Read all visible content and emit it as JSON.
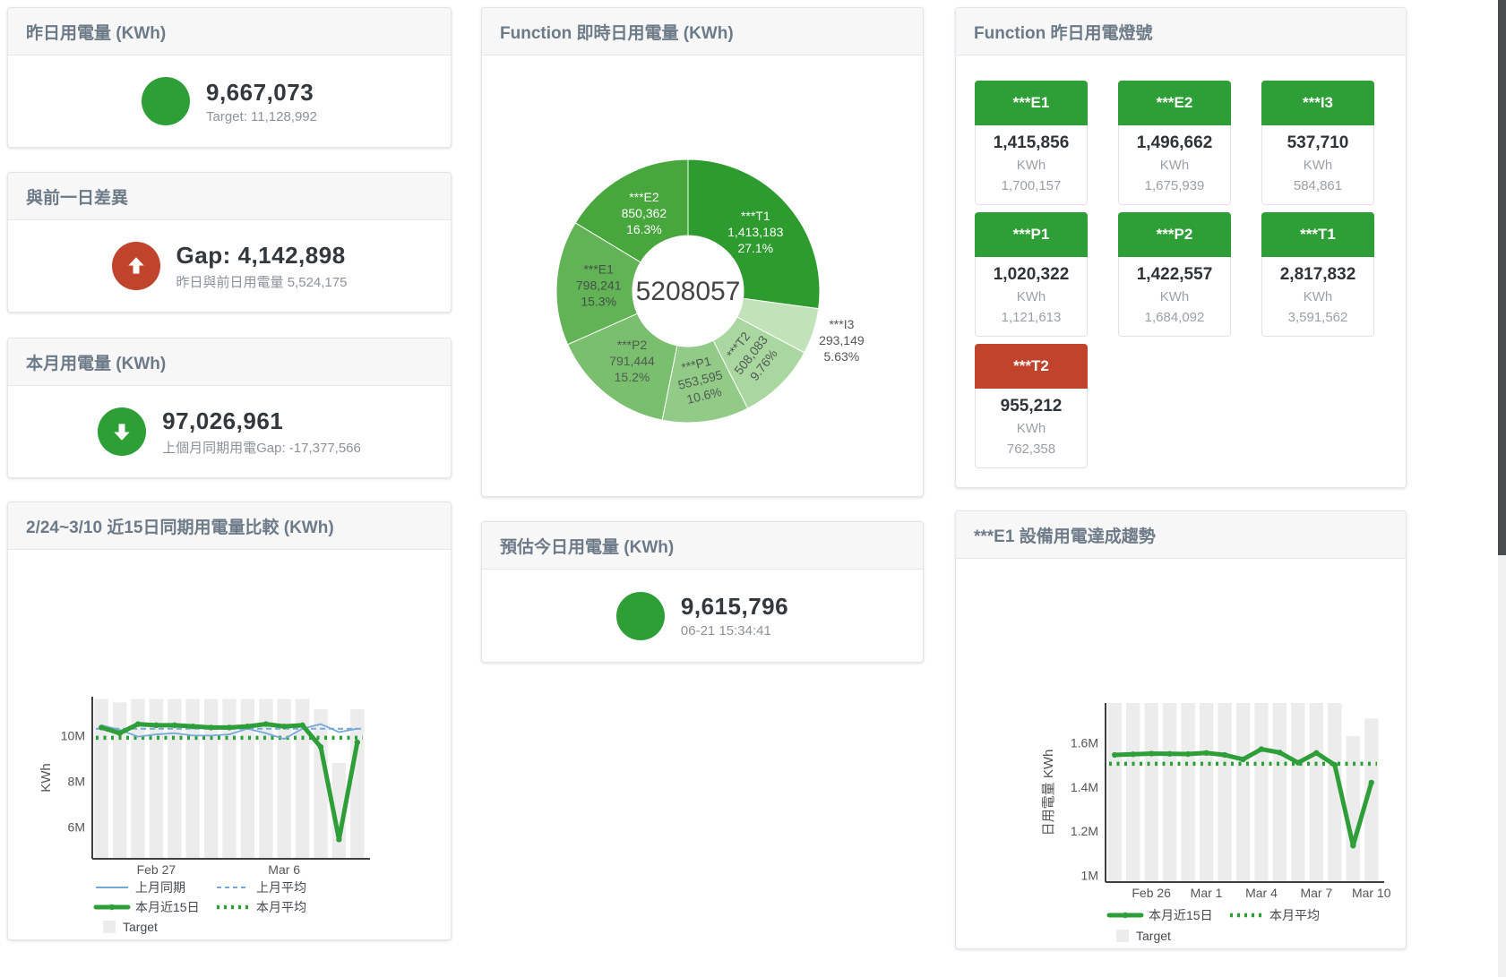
{
  "colors": {
    "green": "#2e9e36",
    "red": "#c0432b",
    "bar_fill": "#ececec",
    "blue_line": "#74a9d8",
    "green_line": "#2e9e38",
    "title_text": "#6d7a88"
  },
  "cards": {
    "yesterday": {
      "title": "昨日用電量 (KWh)",
      "value": "9,667,073",
      "subtitle": "Target: 11,128,992",
      "indicator": "green-circle"
    },
    "day_gap": {
      "title": "與前一日差異",
      "value": "Gap: 4,142,898",
      "subtitle": "昨日與前日用電量 5,524,175",
      "indicator": "red-circle-up-arrow"
    },
    "month": {
      "title": "本月用電量 (KWh)",
      "value": "97,026,961",
      "subtitle": "上個月同期用電Gap: -17,377,566",
      "indicator": "green-circle-down-arrow"
    },
    "forecast": {
      "title": "預估今日用電量 (KWh)",
      "value": "9,615,796",
      "subtitle": "06-21 15:34:41",
      "indicator": "green-circle"
    },
    "comparison": {
      "title": "2/24~3/10 近15日同期用電量比較 (KWh)"
    },
    "realtime": {
      "title": "Function 即時日用電量 (KWh)"
    },
    "lights": {
      "title": "Function 昨日用電燈號",
      "tiles": [
        {
          "label": "***E1",
          "value": "1,415,856",
          "unit": "KWh",
          "target": "1,700,157",
          "status": "green"
        },
        {
          "label": "***E2",
          "value": "1,496,662",
          "unit": "KWh",
          "target": "1,675,939",
          "status": "green"
        },
        {
          "label": "***I3",
          "value": "537,710",
          "unit": "KWh",
          "target": "584,861",
          "status": "green"
        },
        {
          "label": "***P1",
          "value": "1,020,322",
          "unit": "KWh",
          "target": "1,121,613",
          "status": "green"
        },
        {
          "label": "***P2",
          "value": "1,422,557",
          "unit": "KWh",
          "target": "1,684,092",
          "status": "green"
        },
        {
          "label": "***T1",
          "value": "2,817,832",
          "unit": "KWh",
          "target": "3,591,562",
          "status": "green"
        },
        {
          "label": "***T2",
          "value": "955,212",
          "unit": "KWh",
          "target": "762,358",
          "status": "red"
        }
      ]
    },
    "e1_trend": {
      "title": "***E1 設備用電達成趨勢"
    }
  },
  "chart_data": [
    {
      "type": "pie",
      "title": "Function 即時日用電量 (KWh)",
      "center_total": "5208057",
      "slices": [
        {
          "name": "***T1",
          "value": 1413183,
          "value_text": "1,413,183",
          "pct_text": "27.1%",
          "color": "#2e9b2e",
          "label_color": "#ffffff"
        },
        {
          "name": "***I3",
          "value": 293149,
          "value_text": "293,149",
          "pct_text": "5.63%",
          "color": "#c2e2ba",
          "label_color": "#555555",
          "outside": true
        },
        {
          "name": "***T2",
          "value": 508083,
          "value_text": "508,083",
          "pct_text": "9.76%",
          "color": "#aad6a0",
          "label_color": "#4f5b52"
        },
        {
          "name": "***P1",
          "value": 553595,
          "value_text": "553,595",
          "pct_text": "10.6%",
          "color": "#92cb87",
          "label_color": "#4f5b52"
        },
        {
          "name": "***P2",
          "value": 791444,
          "value_text": "791,444",
          "pct_text": "15.2%",
          "color": "#79bf6d",
          "label_color": "#4f5b52"
        },
        {
          "name": "***E1",
          "value": 798241,
          "value_text": "798,241",
          "pct_text": "15.3%",
          "color": "#61b355",
          "label_color": "#44504a"
        },
        {
          "name": "***E2",
          "value": 850362,
          "value_text": "850,362",
          "pct_text": "16.3%",
          "color": "#47a63c",
          "label_color": "#ffffff"
        }
      ]
    },
    {
      "type": "line",
      "title": "2/24~3/10 近15日同期用電量比較 (KWh)",
      "ylabel": "KWh",
      "ylim": [
        4.6,
        11.7
      ],
      "yticks": [
        {
          "v": 6,
          "label": "6M"
        },
        {
          "v": 8,
          "label": "8M"
        },
        {
          "v": 10,
          "label": "10M"
        }
      ],
      "categories": [
        "2/24",
        "2/25",
        "2/26",
        "2/27",
        "2/28",
        "3/1",
        "3/2",
        "3/3",
        "3/4",
        "3/5",
        "3/6",
        "3/7",
        "3/8",
        "3/9",
        "3/10"
      ],
      "xtick_labels": [
        {
          "index": 3,
          "label": "Feb 27"
        },
        {
          "index": 10,
          "label": "Mar 6"
        }
      ],
      "series": [
        {
          "name": "Target",
          "type": "bar",
          "color": "#ececec",
          "values": [
            11.6,
            11.45,
            11.6,
            11.6,
            11.6,
            11.6,
            11.6,
            11.6,
            11.6,
            11.6,
            11.6,
            11.6,
            11.15,
            8.8,
            11.15
          ]
        },
        {
          "name": "上月同期",
          "type": "line",
          "color": "#74a9d8",
          "values": [
            10.45,
            10.25,
            9.95,
            10.05,
            10.1,
            10.0,
            10.0,
            10.05,
            10.3,
            10.1,
            9.85,
            10.3,
            10.5,
            10.15,
            10.3
          ]
        },
        {
          "name": "上月平均",
          "type": "dashed",
          "color": "#74a9d8",
          "value": 10.3
        },
        {
          "name": "本月近15日",
          "type": "thick",
          "color": "#2e9e38",
          "values": [
            10.35,
            10.1,
            10.5,
            10.45,
            10.45,
            10.4,
            10.35,
            10.35,
            10.4,
            10.5,
            10.4,
            10.45,
            9.5,
            5.45,
            9.7
          ]
        },
        {
          "name": "本月平均",
          "type": "dotted",
          "color": "#2e9e38",
          "value": 9.9
        }
      ],
      "legend_rows": [
        [
          "上月同期",
          "上月平均"
        ],
        [
          "本月近15日",
          "本月平均"
        ],
        [
          "Target"
        ]
      ]
    },
    {
      "type": "line",
      "title": "***E1 設備用電達成趨勢",
      "ylabel": "日用電量 KWh",
      "ylim": [
        0.97,
        1.78
      ],
      "yticks": [
        {
          "v": 1,
          "label": "1M"
        },
        {
          "v": 1.2,
          "label": "1.2M"
        },
        {
          "v": 1.4,
          "label": "1.4M"
        },
        {
          "v": 1.6,
          "label": "1.6M"
        }
      ],
      "categories": [
        "2/24",
        "2/25",
        "2/26",
        "2/27",
        "2/28",
        "3/1",
        "3/2",
        "3/3",
        "3/4",
        "3/5",
        "3/6",
        "3/7",
        "3/8",
        "3/9",
        "3/10"
      ],
      "xtick_labels": [
        {
          "index": 2,
          "label": "Feb 26"
        },
        {
          "index": 5,
          "label": "Mar 1"
        },
        {
          "index": 8,
          "label": "Mar 4"
        },
        {
          "index": 11,
          "label": "Mar 7"
        },
        {
          "index": 14,
          "label": "Mar 10"
        }
      ],
      "series": [
        {
          "name": "Target",
          "type": "bar",
          "color": "#ececec",
          "values": [
            1.78,
            1.78,
            1.78,
            1.78,
            1.78,
            1.78,
            1.78,
            1.78,
            1.78,
            1.78,
            1.78,
            1.78,
            1.78,
            1.63,
            1.71
          ]
        },
        {
          "name": "本月近15日",
          "type": "thick",
          "color": "#2e9e38",
          "values": [
            1.545,
            1.548,
            1.551,
            1.55,
            1.549,
            1.554,
            1.545,
            1.525,
            1.571,
            1.556,
            1.51,
            1.554,
            1.5,
            1.135,
            1.42
          ]
        },
        {
          "name": "本月平均",
          "type": "dotted",
          "color": "#2e9e38",
          "value": 1.505
        }
      ],
      "legend_rows": [
        [
          "本月近15日",
          "本月平均"
        ],
        [
          "Target"
        ]
      ]
    }
  ]
}
